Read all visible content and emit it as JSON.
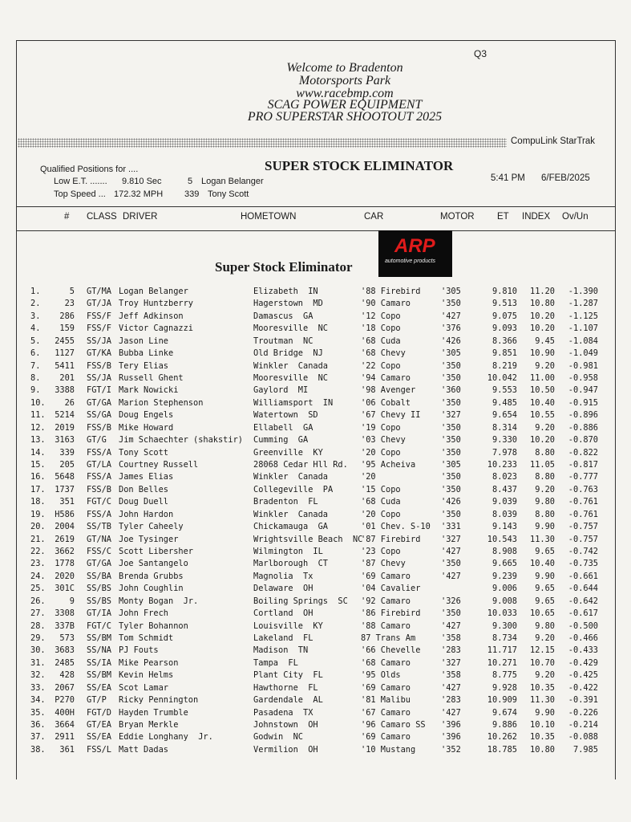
{
  "header": {
    "page_code": "Q3",
    "welcome": [
      "Welcome to Bradenton",
      "Motorsports Park",
      "www.racebmp.com",
      "SCAG POWER EQUIPMENT",
      "PRO SUPERSTAR SHOOTOUT 2025"
    ],
    "system": "CompuLink StarTrak",
    "qualified_label": "Qualified Positions for ....",
    "low_et": {
      "label": "Low E.T. .......",
      "value": "9.810 Sec",
      "number": "5",
      "driver": "Logan Belanger"
    },
    "top_speed": {
      "label": "Top Speed ...",
      "value": "172.32 MPH",
      "number": "339",
      "driver": "Tony Scott"
    },
    "title": "SUPER STOCK ELIMINATOR",
    "time": "5:41 PM",
    "date": "6/FEB/2025"
  },
  "logo": {
    "brand": "ARP",
    "tagline": "automotive products"
  },
  "table": {
    "columns": [
      "#",
      "CLASS",
      "DRIVER",
      "HOMETOWN",
      "CAR",
      "MOTOR",
      "ET",
      "INDEX",
      "Ov/Un"
    ],
    "section_title": "Super Stock Eliminator",
    "rows": [
      [
        "1.",
        "5",
        "GT/MA",
        "Logan Belanger",
        "Elizabeth  IN",
        "'88 Firebird",
        "'305",
        "9.810",
        "11.20",
        "-1.390"
      ],
      [
        "2.",
        "23",
        "GT/JA",
        "Troy Huntzberry",
        "Hagerstown  MD",
        "'90 Camaro",
        "'350",
        "9.513",
        "10.80",
        "-1.287"
      ],
      [
        "3.",
        "286",
        "FSS/F",
        "Jeff Adkinson",
        "Damascus  GA",
        "'12 Copo",
        "'427",
        "9.075",
        "10.20",
        "-1.125"
      ],
      [
        "4.",
        "159",
        "FSS/F",
        "Victor Cagnazzi",
        "Mooresville  NC",
        "'18 Copo",
        "'376",
        "9.093",
        "10.20",
        "-1.107"
      ],
      [
        "5.",
        "2455",
        "SS/JA",
        "Jason Line",
        "Troutman  NC",
        "'68 Cuda",
        "'426",
        "8.366",
        "9.45",
        "-1.084"
      ],
      [
        "6.",
        "1127",
        "GT/KA",
        "Bubba Linke",
        "Old Bridge  NJ",
        "'68 Chevy",
        "'305",
        "9.851",
        "10.90",
        "-1.049"
      ],
      [
        "7.",
        "5411",
        "FSS/B",
        "Tery Elias",
        "Winkler  Canada",
        "'22 Copo",
        "'350",
        "8.219",
        "9.20",
        "-0.981"
      ],
      [
        "8.",
        "201",
        "SS/JA",
        "Russell Ghent",
        "Mooresville  NC",
        "'94 Camaro",
        "'350",
        "10.042",
        "11.00",
        "-0.958"
      ],
      [
        "9.",
        "3388",
        "FGT/I",
        "Mark Nowicki",
        "Gaylord  MI",
        "'98 Avenger",
        "'360",
        "9.553",
        "10.50",
        "-0.947"
      ],
      [
        "10.",
        "26",
        "GT/GA",
        "Marion Stephenson",
        "Williamsport  IN",
        "'06 Cobalt",
        "'350",
        "9.485",
        "10.40",
        "-0.915"
      ],
      [
        "11.",
        "5214",
        "SS/GA",
        "Doug Engels",
        "Watertown  SD",
        "'67 Chevy II",
        "'327",
        "9.654",
        "10.55",
        "-0.896"
      ],
      [
        "12.",
        "2019",
        "FSS/B",
        "Mike Howard",
        "Ellabell  GA",
        "'19 Copo",
        "'350",
        "8.314",
        "9.20",
        "-0.886"
      ],
      [
        "13.",
        "3163",
        "GT/G",
        "Jim Schaechter (shakstir)",
        "Cumming  GA",
        "'03 Chevy",
        "'350",
        "9.330",
        "10.20",
        "-0.870"
      ],
      [
        "14.",
        "339",
        "FSS/A",
        "Tony Scott",
        "Greenville  KY",
        "'20 Copo",
        "'350",
        "7.978",
        "8.80",
        "-0.822"
      ],
      [
        "15.",
        "205",
        "GT/LA",
        "Courtney Russell",
        "28068 Cedar Hll Rd.",
        "'95 Acheiva",
        "'305",
        "10.233",
        "11.05",
        "-0.817"
      ],
      [
        "16.",
        "5648",
        "FSS/A",
        "James Elias",
        "Winkler  Canada",
        "'20",
        "'350",
        "8.023",
        "8.80",
        "-0.777"
      ],
      [
        "17.",
        "1737",
        "FSS/B",
        "Don Belles",
        "Collegeville  PA",
        "'15 Copo",
        "'350",
        "8.437",
        "9.20",
        "-0.763"
      ],
      [
        "18.",
        "351",
        "FGT/C",
        "Doug Duell",
        "Bradenton  FL",
        "'68 Cuda",
        "'426",
        "9.039",
        "9.80",
        "-0.761"
      ],
      [
        "19.",
        "H586",
        "FSS/A",
        "John Hardon",
        "Winkler  Canada",
        "'20 Copo",
        "'350",
        "8.039",
        "8.80",
        "-0.761"
      ],
      [
        "20.",
        "2004",
        "SS/TB",
        "Tyler Caheely",
        "Chickamauga  GA",
        "'01 Chev. S-10",
        "'331",
        "9.143",
        "9.90",
        "-0.757"
      ],
      [
        "21.",
        "2619",
        "GT/NA",
        "Joe Tysinger",
        "Wrightsville Beach  NC",
        "'87 Firebird",
        "'327",
        "10.543",
        "11.30",
        "-0.757"
      ],
      [
        "22.",
        "3662",
        "FSS/C",
        "Scott Libersher",
        "Wilmington  IL",
        "'23 Copo",
        "'427",
        "8.908",
        "9.65",
        "-0.742"
      ],
      [
        "23.",
        "1778",
        "GT/GA",
        "Joe Santangelo",
        "Marlborough  CT",
        "'87 Chevy",
        "'350",
        "9.665",
        "10.40",
        "-0.735"
      ],
      [
        "24.",
        "2020",
        "SS/BA",
        "Brenda Grubbs",
        "Magnolia  Tx",
        "'69 Camaro",
        "'427",
        "9.239",
        "9.90",
        "-0.661"
      ],
      [
        "25.",
        "301C",
        "SS/BS",
        "John Coughlin",
        "Delaware  OH",
        "'04 Cavalier",
        null,
        "9.006",
        "9.65",
        "-0.644"
      ],
      [
        "26.",
        "9",
        "SS/BS",
        "Monty Bogan  Jr.",
        "Boiling Springs  SC",
        "'92 Camaro",
        "'326",
        "9.008",
        "9.65",
        "-0.642"
      ],
      [
        "27.",
        "3308",
        "GT/IA",
        "John Frech",
        "Cortland  OH",
        "'86 Firebird",
        "'350",
        "10.033",
        "10.65",
        "-0.617"
      ],
      [
        "28.",
        "337B",
        "FGT/C",
        "Tyler Bohannon",
        "Louisville  KY",
        "'88 Camaro",
        "'427",
        "9.300",
        "9.80",
        "-0.500"
      ],
      [
        "29.",
        "573",
        "SS/BM",
        "Tom Schmidt",
        "Lakeland  FL",
        "87 Trans Am",
        "'358",
        "8.734",
        "9.20",
        "-0.466"
      ],
      [
        "30.",
        "3683",
        "SS/NA",
        "PJ Fouts",
        "Madison  TN",
        "'66 Chevelle",
        "'283",
        "11.717",
        "12.15",
        "-0.433"
      ],
      [
        "31.",
        "2485",
        "SS/IA",
        "Mike Pearson",
        "Tampa  FL",
        "'68 Camaro",
        "'327",
        "10.271",
        "10.70",
        "-0.429"
      ],
      [
        "32.",
        "428",
        "SS/BM",
        "Kevin Helms",
        "Plant City  FL",
        "'95 Olds",
        "'358",
        "8.775",
        "9.20",
        "-0.425"
      ],
      [
        "33.",
        "2067",
        "SS/EA",
        "Scot Lamar",
        "Hawthorne  FL",
        "'69 Camaro",
        "'427",
        "9.928",
        "10.35",
        "-0.422"
      ],
      [
        "34.",
        "P270",
        "GT/P",
        "Ricky Pennington",
        "Gardendale  AL",
        "'81 Malibu",
        "'283",
        "10.909",
        "11.30",
        "-0.391"
      ],
      [
        "35.",
        "400H",
        "FGT/D",
        "Hayden Trumble",
        "Pasadena  TX",
        "'67 Camaro",
        "'427",
        "9.674",
        "9.90",
        "-0.226"
      ],
      [
        "36.",
        "3664",
        "GT/EA",
        "Bryan Merkle",
        "Johnstown  OH",
        "'96 Camaro SS",
        "'396",
        "9.886",
        "10.10",
        "-0.214"
      ],
      [
        "37.",
        "2911",
        "SS/EA",
        "Eddie Longhany  Jr.",
        "Godwin  NC",
        "'69 Camaro",
        "'396",
        "10.262",
        "10.35",
        "-0.088"
      ],
      [
        "38.",
        "361",
        "FSS/L",
        "Matt Dadas",
        "Vermilion  OH",
        "'10 Mustang",
        "'352",
        "18.785",
        "10.80",
        "7.985"
      ]
    ]
  }
}
